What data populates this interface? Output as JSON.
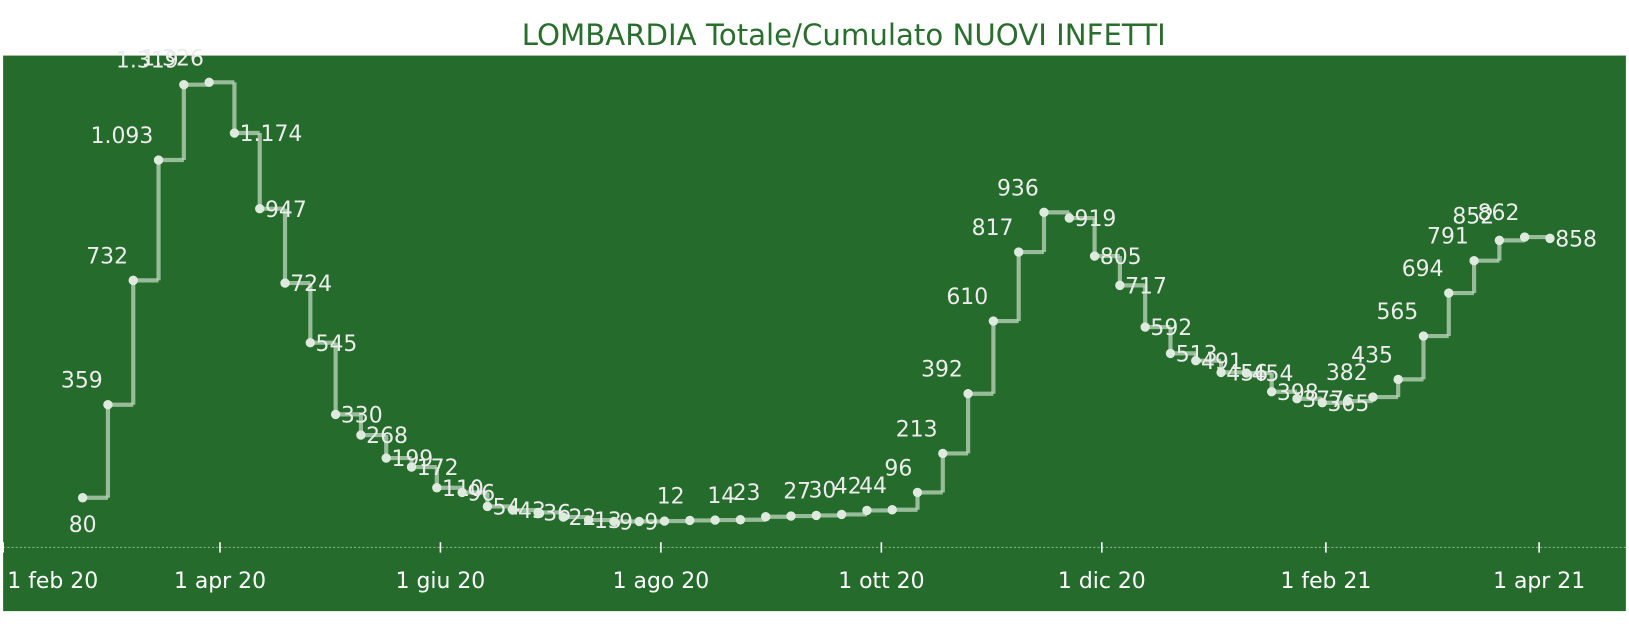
{
  "chart_data": {
    "type": "step",
    "title": "LOMBARDIA Totale/Cumulato NUOVI INFETTI",
    "x": [
      "2020-02-23",
      "2020-03-01",
      "2020-03-08",
      "2020-03-15",
      "2020-03-22",
      "2020-03-29",
      "2020-04-05",
      "2020-04-12",
      "2020-04-19",
      "2020-04-26",
      "2020-05-03",
      "2020-05-10",
      "2020-05-17",
      "2020-05-24",
      "2020-05-31",
      "2020-06-07",
      "2020-06-14",
      "2020-06-21",
      "2020-06-28",
      "2020-07-05",
      "2020-07-12",
      "2020-07-19",
      "2020-07-26",
      "2020-08-02",
      "2020-08-09",
      "2020-08-16",
      "2020-08-23",
      "2020-08-30",
      "2020-09-06",
      "2020-09-13",
      "2020-09-20",
      "2020-09-27",
      "2020-10-04",
      "2020-10-11",
      "2020-10-18",
      "2020-10-25",
      "2020-11-01",
      "2020-11-08",
      "2020-11-15",
      "2020-11-22",
      "2020-11-29",
      "2020-12-06",
      "2020-12-13",
      "2020-12-20",
      "2020-12-27",
      "2021-01-03",
      "2021-01-10",
      "2021-01-17",
      "2021-01-24",
      "2021-01-31",
      "2021-02-07",
      "2021-02-14",
      "2021-02-21",
      "2021-02-28",
      "2021-03-07",
      "2021-03-14",
      "2021-03-21",
      "2021-03-28",
      "2021-04-04"
    ],
    "series": [
      {
        "color": "#b5d1b5",
        "values": [
          80,
          359,
          732,
          1093,
          1319,
          1326,
          1174,
          947,
          724,
          545,
          330,
          268,
          199,
          172,
          110,
          96,
          54,
          43,
          36,
          22,
          13,
          9,
          9,
          10,
          12,
          13,
          14,
          23,
          25,
          27,
          30,
          42,
          44,
          96,
          213,
          392,
          610,
          817,
          936,
          919,
          805,
          717,
          592,
          513,
          491,
          456,
          454,
          398,
          377,
          365,
          370,
          382,
          435,
          565,
          694,
          791,
          852,
          862,
          858
        ],
        "value_labels": [
          "80",
          "359",
          "732",
          "1.093",
          "1.319",
          "1.326",
          "1.174",
          "947",
          "724",
          "545",
          "330",
          "268",
          "199",
          "172",
          "110",
          "96",
          "54",
          "43",
          "36",
          "22",
          "13",
          "9",
          "9",
          null,
          "12",
          null,
          "14",
          "23",
          null,
          "27",
          "30",
          "42",
          "44",
          "96",
          "213",
          "392",
          "610",
          "817",
          "936",
          "919",
          "805",
          "717",
          "592",
          "513",
          "491",
          "456",
          "454",
          "398",
          "377",
          "365",
          null,
          "382",
          "435",
          "565",
          "694",
          "791",
          "852",
          "862",
          "858"
        ]
      }
    ],
    "xlim": [
      "2020-02-01",
      "2021-04-25"
    ],
    "xticks": [
      {
        "value": "2020-02-01",
        "label": "1 feb 20"
      },
      {
        "value": "2020-04-01",
        "label": "1 apr 20"
      },
      {
        "value": "2020-06-01",
        "label": "1 giu 20"
      },
      {
        "value": "2020-08-01",
        "label": "1 ago 20"
      },
      {
        "value": "2020-10-01",
        "label": "1 ott 20"
      },
      {
        "value": "2020-12-01",
        "label": "1 dic 20"
      },
      {
        "value": "2021-02-01",
        "label": "1 feb 21"
      },
      {
        "value": "2021-04-01",
        "label": "1 apr 21"
      }
    ],
    "ylim": [
      -260,
      1400
    ],
    "background": "#256b2b",
    "title_color": "#2a6e2e"
  }
}
